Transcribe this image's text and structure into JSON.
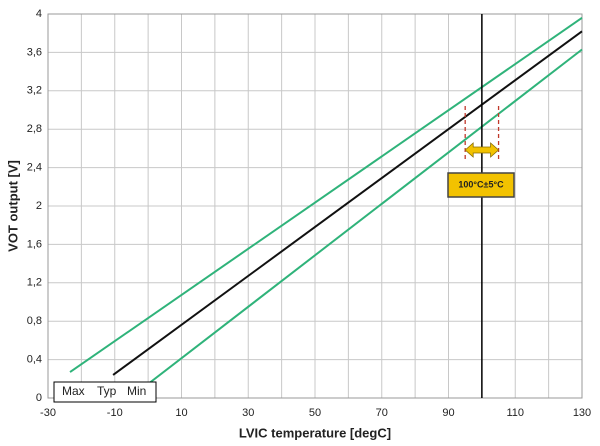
{
  "chart_data": {
    "type": "line",
    "x_label": "LVIC temperature [degC]",
    "y_label": "VOT output [V]",
    "series": [
      {
        "name": "Max",
        "color": "#2fb37a",
        "x": [
          -23.4,
          130
        ],
        "values": [
          0.27,
          3.96
        ]
      },
      {
        "name": "Typ",
        "color": "#111111",
        "x": [
          -10.5,
          130
        ],
        "values": [
          0.24,
          3.82
        ]
      },
      {
        "name": "Min",
        "color": "#2fb37a",
        "x": [
          0.5,
          130
        ],
        "values": [
          0.16,
          3.63
        ]
      }
    ],
    "xlim": [
      -30,
      130
    ],
    "xticks": [
      -30,
      -10,
      10,
      30,
      50,
      70,
      90,
      110,
      130
    ],
    "xminorticks": [
      -20,
      0,
      20,
      40,
      60,
      80,
      100,
      120
    ],
    "ylim": [
      0,
      4
    ],
    "yticks": [
      0,
      {
        "value": 0.4,
        "label": "0,4"
      },
      {
        "value": 0.8,
        "label": "0,8"
      },
      {
        "value": 1.2,
        "label": "1,2"
      },
      {
        "value": 1.6,
        "label": "1,6"
      },
      2,
      {
        "value": 2.4,
        "label": "2,4"
      },
      {
        "value": 2.8,
        "label": "2,8"
      },
      {
        "value": 3.2,
        "label": "3,2"
      },
      {
        "value": 3.6,
        "label": "3,6"
      },
      4
    ],
    "grid": true,
    "vline": 100,
    "band": [
      95,
      105
    ],
    "annotation": "100°C±5°C"
  }
}
